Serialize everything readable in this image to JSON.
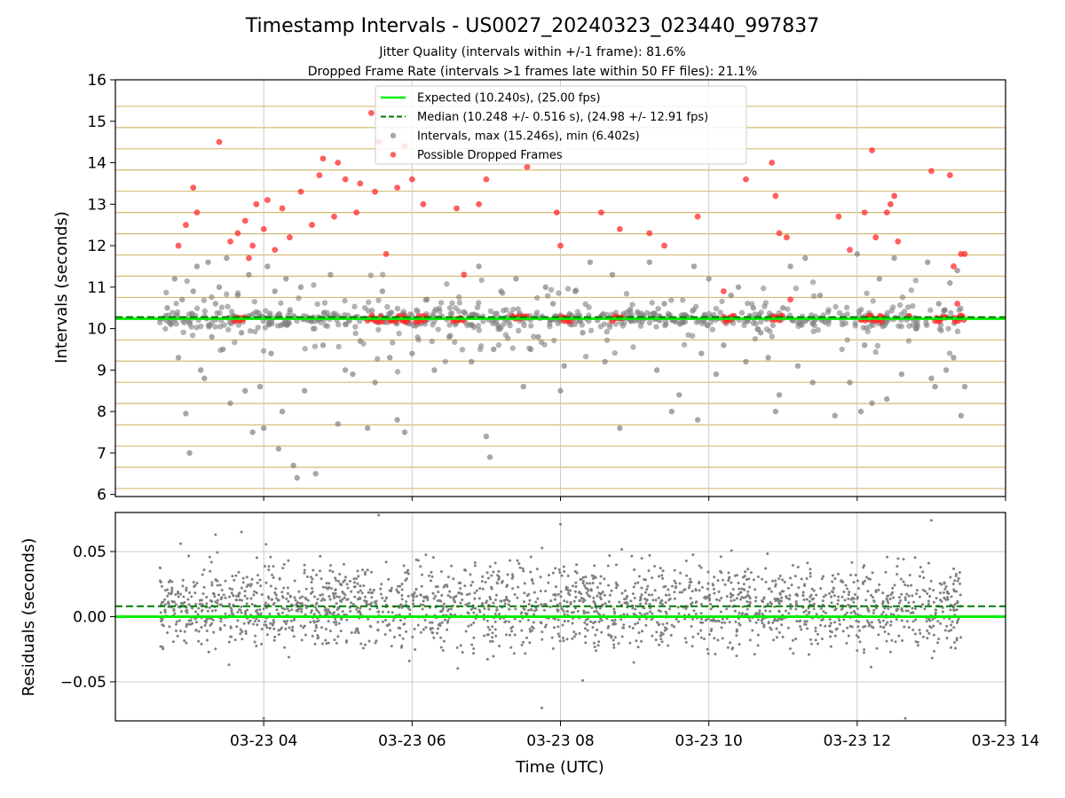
{
  "figure": {
    "title": "Timestamp Intervals - US0027_20240323_023440_997837",
    "subtitle_1": "Jitter Quality (intervals within +/-1 frame): 81.6%",
    "subtitle_2": "Dropped Frame Rate (intervals >1 frames late within 50 FF files): 21.1%",
    "xlabel": "Time (UTC)",
    "x_ticks": [
      "03-23 04",
      "03-23 06",
      "03-23 08",
      "03-23 10",
      "03-23 12",
      "03-23 14"
    ]
  },
  "chart_data": [
    {
      "type": "scatter",
      "ylabel": "Intervals (seconds)",
      "xlim": [
        "2024-03-23 02:00",
        "2024-03-23 14:00"
      ],
      "x_tick_hours": [
        4,
        6,
        8,
        10,
        12,
        14
      ],
      "ylim": [
        5.95,
        16
      ],
      "y_ticks": [
        6,
        7,
        8,
        9,
        10,
        11,
        12,
        13,
        14,
        15,
        16
      ],
      "grid": true,
      "frame_grid_lines": [
        6.144,
        6.656,
        7.168,
        7.68,
        8.192,
        8.704,
        9.216,
        9.728,
        10.24,
        10.752,
        11.264,
        11.776,
        12.288,
        12.8,
        13.312,
        13.824,
        14.336,
        14.848,
        15.36
      ],
      "legend_position": "upper center",
      "legend": [
        "Expected (10.240s), (25.00 fps)",
        "Median (10.248 +/- 0.516 s), (24.98 +/- 12.91 fps)",
        "Intervals, max (15.246s), min (6.402s)",
        "Possible Dropped Frames"
      ],
      "expected_line": 10.24,
      "median_line": 10.248,
      "time_range_hours": [
        2.6,
        13.4
      ],
      "series": [
        {
          "kind": "intervals",
          "color": "#808080",
          "points": [
            [
              2.65,
              10.25
            ],
            [
              2.7,
              10.5
            ],
            [
              2.75,
              10.1
            ],
            [
              2.8,
              11.2
            ],
            [
              2.85,
              9.3
            ],
            [
              2.9,
              10.7
            ],
            [
              2.95,
              7.95
            ],
            [
              3.0,
              7.0
            ],
            [
              3.05,
              10.9
            ],
            [
              3.1,
              11.5
            ],
            [
              3.15,
              9.0
            ],
            [
              3.2,
              8.8
            ],
            [
              3.25,
              11.6
            ],
            [
              3.3,
              9.8
            ],
            [
              3.35,
              10.6
            ],
            [
              3.4,
              11.0
            ],
            [
              3.45,
              9.5
            ],
            [
              3.5,
              11.7
            ],
            [
              3.55,
              8.2
            ],
            [
              3.6,
              10.3
            ],
            [
              3.65,
              10.8
            ],
            [
              3.7,
              9.9
            ],
            [
              3.75,
              8.5
            ],
            [
              3.8,
              11.3
            ],
            [
              3.85,
              7.5
            ],
            [
              3.9,
              10.4
            ],
            [
              3.95,
              8.6
            ],
            [
              4.0,
              7.6
            ],
            [
              4.05,
              11.5
            ],
            [
              4.1,
              9.4
            ],
            [
              4.15,
              10.9
            ],
            [
              4.2,
              7.1
            ],
            [
              4.25,
              8.0
            ],
            [
              4.3,
              11.2
            ],
            [
              4.4,
              6.7
            ],
            [
              4.45,
              6.4
            ],
            [
              4.5,
              11.0
            ],
            [
              4.55,
              8.5
            ],
            [
              4.6,
              10.2
            ],
            [
              4.7,
              6.5
            ],
            [
              4.8,
              9.6
            ],
            [
              4.9,
              11.3
            ],
            [
              5.0,
              7.7
            ],
            [
              5.1,
              9.0
            ],
            [
              5.2,
              8.9
            ],
            [
              5.3,
              9.7
            ],
            [
              5.4,
              7.6
            ],
            [
              5.5,
              8.7
            ],
            [
              5.6,
              10.9
            ],
            [
              5.7,
              9.3
            ],
            [
              5.8,
              7.8
            ],
            [
              5.9,
              7.5
            ],
            [
              6.0,
              9.4
            ],
            [
              6.2,
              10.7
            ],
            [
              6.3,
              9.0
            ],
            [
              6.4,
              10.3
            ],
            [
              6.5,
              9.8
            ],
            [
              6.7,
              10.4
            ],
            [
              6.8,
              9.2
            ],
            [
              6.9,
              11.5
            ],
            [
              7.0,
              7.4
            ],
            [
              7.05,
              6.9
            ],
            [
              7.1,
              9.5
            ],
            [
              7.2,
              10.9
            ],
            [
              7.4,
              11.2
            ],
            [
              7.5,
              8.6
            ],
            [
              7.6,
              9.5
            ],
            [
              7.7,
              9.8
            ],
            [
              7.8,
              11.0
            ],
            [
              7.9,
              10.6
            ],
            [
              8.0,
              8.5
            ],
            [
              8.05,
              9.1
            ],
            [
              8.2,
              10.9
            ],
            [
              8.3,
              9.9
            ],
            [
              8.4,
              11.6
            ],
            [
              8.5,
              10.2
            ],
            [
              8.6,
              9.2
            ],
            [
              8.7,
              11.3
            ],
            [
              8.8,
              7.6
            ],
            [
              8.9,
              10.4
            ],
            [
              9.2,
              11.6
            ],
            [
              9.3,
              9.0
            ],
            [
              9.4,
              10.6
            ],
            [
              9.5,
              8.0
            ],
            [
              9.6,
              8.4
            ],
            [
              9.7,
              10.3
            ],
            [
              9.8,
              11.5
            ],
            [
              9.85,
              7.8
            ],
            [
              9.9,
              9.4
            ],
            [
              10.0,
              11.2
            ],
            [
              10.1,
              8.9
            ],
            [
              10.2,
              9.6
            ],
            [
              10.3,
              10.8
            ],
            [
              10.4,
              11.0
            ],
            [
              10.5,
              9.2
            ],
            [
              10.6,
              10.5
            ],
            [
              10.7,
              9.9
            ],
            [
              10.8,
              9.3
            ],
            [
              10.9,
              8.0
            ],
            [
              10.95,
              8.4
            ],
            [
              11.0,
              10.5
            ],
            [
              11.1,
              11.5
            ],
            [
              11.2,
              9.1
            ],
            [
              11.3,
              11.7
            ],
            [
              11.4,
              8.7
            ],
            [
              11.5,
              10.8
            ],
            [
              11.7,
              7.9
            ],
            [
              11.8,
              10.1
            ],
            [
              11.9,
              8.7
            ],
            [
              12.0,
              11.8
            ],
            [
              12.05,
              8.0
            ],
            [
              12.1,
              9.6
            ],
            [
              12.2,
              8.2
            ],
            [
              12.3,
              11.2
            ],
            [
              12.4,
              8.3
            ],
            [
              12.5,
              11.7
            ],
            [
              12.6,
              8.9
            ],
            [
              12.7,
              10.3
            ],
            [
              12.8,
              10.0
            ],
            [
              12.95,
              11.6
            ],
            [
              13.0,
              8.8
            ],
            [
              13.05,
              8.6
            ],
            [
              13.1,
              10.6
            ],
            [
              13.2,
              9.0
            ],
            [
              13.25,
              11.1
            ],
            [
              13.3,
              9.3
            ],
            [
              13.35,
              11.4
            ],
            [
              13.4,
              7.9
            ],
            [
              13.45,
              8.6
            ]
          ]
        },
        {
          "kind": "dropped",
          "color": "#ff2a2a",
          "points": [
            [
              2.85,
              12.0
            ],
            [
              2.95,
              12.5
            ],
            [
              3.05,
              13.4
            ],
            [
              3.1,
              12.8
            ],
            [
              3.4,
              14.5
            ],
            [
              3.55,
              12.1
            ],
            [
              3.65,
              12.3
            ],
            [
              3.75,
              12.6
            ],
            [
              3.8,
              11.7
            ],
            [
              3.85,
              12.0
            ],
            [
              3.9,
              13.0
            ],
            [
              4.0,
              12.4
            ],
            [
              4.05,
              13.1
            ],
            [
              4.15,
              11.9
            ],
            [
              4.25,
              12.9
            ],
            [
              4.35,
              12.2
            ],
            [
              4.5,
              13.3
            ],
            [
              4.65,
              12.5
            ],
            [
              4.75,
              13.7
            ],
            [
              4.8,
              14.1
            ],
            [
              4.95,
              12.7
            ],
            [
              5.0,
              14.0
            ],
            [
              5.1,
              13.6
            ],
            [
              5.25,
              12.8
            ],
            [
              5.3,
              13.5
            ],
            [
              5.45,
              15.2
            ],
            [
              5.5,
              13.3
            ],
            [
              5.55,
              14.5
            ],
            [
              5.65,
              11.8
            ],
            [
              5.8,
              13.4
            ],
            [
              5.9,
              14.4
            ],
            [
              6.0,
              13.6
            ],
            [
              6.15,
              13.0
            ],
            [
              6.6,
              12.9
            ],
            [
              6.7,
              11.3
            ],
            [
              6.9,
              13.0
            ],
            [
              7.0,
              13.6
            ],
            [
              7.55,
              13.9
            ],
            [
              7.95,
              12.8
            ],
            [
              8.0,
              12.0
            ],
            [
              8.55,
              12.8
            ],
            [
              8.8,
              12.4
            ],
            [
              9.2,
              12.3
            ],
            [
              9.4,
              12.0
            ],
            [
              9.85,
              12.7
            ],
            [
              10.2,
              10.9
            ],
            [
              10.5,
              13.6
            ],
            [
              10.85,
              14.0
            ],
            [
              10.9,
              13.2
            ],
            [
              10.95,
              12.3
            ],
            [
              11.05,
              12.2
            ],
            [
              11.1,
              10.7
            ],
            [
              11.75,
              12.7
            ],
            [
              11.9,
              11.9
            ],
            [
              12.1,
              12.8
            ],
            [
              12.2,
              14.3
            ],
            [
              12.25,
              12.2
            ],
            [
              12.4,
              12.8
            ],
            [
              12.45,
              13.0
            ],
            [
              12.5,
              13.2
            ],
            [
              12.55,
              12.1
            ],
            [
              12.7,
              10.3
            ],
            [
              13.0,
              13.8
            ],
            [
              13.25,
              13.7
            ],
            [
              13.3,
              11.5
            ],
            [
              13.35,
              10.6
            ],
            [
              13.4,
              11.8
            ],
            [
              13.45,
              11.8
            ]
          ],
          "clusters": [
            [
              3.6,
              3.75
            ],
            [
              5.4,
              5.6
            ],
            [
              5.7,
              5.95
            ],
            [
              6.05,
              6.2
            ],
            [
              6.55,
              6.7
            ],
            [
              7.35,
              7.55
            ],
            [
              8.0,
              8.15
            ],
            [
              8.7,
              8.85
            ],
            [
              10.2,
              10.35
            ],
            [
              10.85,
              11.0
            ],
            [
              12.05,
              12.35
            ],
            [
              13.05,
              13.2
            ],
            [
              13.3,
              13.45
            ]
          ]
        }
      ]
    },
    {
      "type": "scatter",
      "ylabel": "Residuals (seconds)",
      "ylim": [
        -0.08,
        0.08
      ],
      "y_ticks": [
        0.05,
        0.0,
        -0.05
      ],
      "y_tick_labels": [
        "0.05",
        "0.00",
        "−0.05"
      ],
      "grid": true,
      "expected_line": 0.0,
      "median_line": 0.008,
      "point_color": "#808080",
      "residual_spread": 0.045,
      "outliers": [
        [
          3.35,
          0.063
        ],
        [
          3.7,
          0.065
        ],
        [
          4.0,
          -0.078
        ],
        [
          5.55,
          0.078
        ],
        [
          7.75,
          -0.07
        ],
        [
          8.0,
          0.071
        ],
        [
          8.3,
          -0.049
        ],
        [
          12.65,
          -0.078
        ],
        [
          13.0,
          0.074
        ]
      ]
    }
  ]
}
